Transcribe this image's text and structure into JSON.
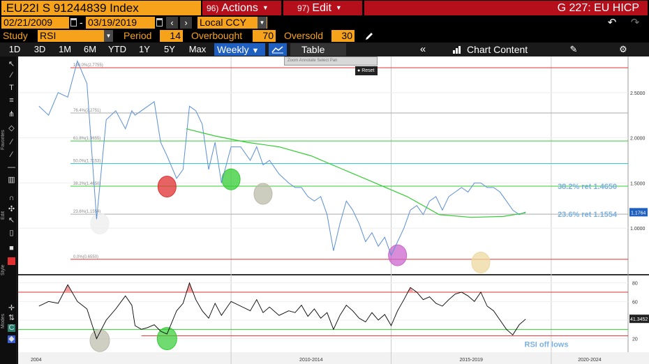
{
  "header": {
    "ticker": ".EU22I S 91244839 Index",
    "actions": {
      "num": "96)",
      "label": "Actions"
    },
    "edit": {
      "num": "97)",
      "label": "Edit"
    },
    "right_title": "G 227: EU HICP"
  },
  "dates": {
    "start": "02/21/2009",
    "end": "03/19/2019",
    "separator": "-",
    "currency": "Local CCY"
  },
  "study": {
    "study_label": "Study",
    "study_value": "RSI",
    "period_label": "Period",
    "period_value": "14",
    "overbought_label": "Overbought",
    "overbought_value": "70",
    "oversold_label": "Oversold",
    "oversold_value": "30"
  },
  "toolbar": {
    "timeframes": [
      "1D",
      "3D",
      "1M",
      "6M",
      "YTD",
      "1Y",
      "5Y",
      "Max"
    ],
    "frequency": "Weekly",
    "table_label": "Table",
    "chart_content_label": "Chart Content"
  },
  "left_toolbar_labels": {
    "favorites": "Favorites",
    "edit": "Edit",
    "style": "Style",
    "modes": "Modes"
  },
  "zoom": {
    "items": [
      "Zoom",
      "Annotate",
      "Select",
      "Pan"
    ],
    "reset_label": "Reset"
  },
  "colors": {
    "accent_orange": "#f7a21b",
    "header_red": "#b50f1c",
    "price": "#5b8fd6",
    "ma": "#33cc33",
    "fib_red": "#e03030",
    "fib_green": "#33cc33",
    "fib_grey": "#aaaaaa",
    "fib_cyan": "#33cccc",
    "rsi": "#000000"
  },
  "chart_data": {
    "type": "line",
    "price_panel": {
      "yaxis_ticks": [
        "2.5000",
        "2.0000",
        "1.5000",
        "1.0000"
      ],
      "ylim": [
        0.5,
        2.9
      ],
      "last_value": "1.1764",
      "series": [
        {
          "name": "",
          "x": [
            2004.0,
            2004.3,
            2004.6,
            2004.9,
            2005.2,
            2005.5,
            2005.8,
            2006.1,
            2006.4,
            2006.7,
            2006.9,
            2007.0,
            2007.2,
            2007.4,
            2007.6,
            2007.8,
            2008.0,
            2008.3,
            2008.5,
            2008.7,
            2008.9,
            2009.1,
            2009.3,
            2009.5,
            2009.7,
            2010.0,
            2010.3,
            2010.6,
            2010.8,
            2011.0,
            2011.2,
            2011.5,
            2011.8,
            2012.0,
            2012.2,
            2012.4,
            2012.6,
            2012.8,
            2013.0,
            2013.2,
            2013.4,
            2013.6,
            2013.8,
            2014.0,
            2014.2,
            2014.4,
            2014.6,
            2014.8,
            2015.0,
            2015.2,
            2015.4,
            2015.6,
            2015.8,
            2016.0,
            2016.2,
            2016.4,
            2016.6,
            2016.8,
            2017.0,
            2017.2,
            2017.4,
            2017.6,
            2017.8,
            2018.0,
            2018.2,
            2018.4,
            2018.6,
            2018.8,
            2019.0,
            2019.2
          ],
          "values": [
            2.35,
            2.25,
            2.5,
            2.45,
            2.85,
            2.6,
            1.1,
            2.2,
            2.3,
            2.1,
            2.3,
            2.25,
            2.3,
            2.35,
            2.4,
            1.95,
            1.8,
            1.55,
            1.65,
            2.35,
            2.3,
            2.15,
            1.65,
            1.95,
            1.5,
            1.9,
            1.9,
            1.75,
            1.9,
            1.7,
            1.75,
            1.6,
            1.5,
            1.45,
            1.45,
            1.35,
            1.3,
            1.35,
            1.15,
            0.75,
            1.05,
            1.3,
            1.2,
            1.05,
            0.85,
            0.95,
            0.8,
            0.9,
            0.7,
            0.85,
            1.0,
            1.2,
            1.25,
            1.15,
            1.3,
            1.35,
            1.2,
            1.35,
            1.4,
            1.45,
            1.4,
            1.5,
            1.5,
            1.45,
            1.45,
            1.4,
            1.3,
            1.2,
            1.15,
            1.18
          ]
        },
        {
          "name": "",
          "x": [
            2008.6,
            2009.5,
            2010.5,
            2011.5,
            2012.5,
            2013.5,
            2014.5,
            2015.5,
            2016.5,
            2017.5,
            2018.5,
            2019.2
          ],
          "values": [
            2.1,
            2.02,
            1.95,
            1.9,
            1.8,
            1.65,
            1.5,
            1.35,
            1.15,
            1.12,
            1.13,
            1.17
          ]
        }
      ],
      "fib_levels": [
        {
          "label": "100.0%(2.7755)",
          "value": 2.7755,
          "color": "#e03030"
        },
        {
          "label": "76.4%(2.2751)",
          "value": 2.2751,
          "color": "#aaaaaa"
        },
        {
          "label": "61.8%(1.9655)",
          "value": 1.9655,
          "color": "#33cc33"
        },
        {
          "label": "50.0%(1.7153)",
          "value": 1.7153,
          "color": "#33cccc"
        },
        {
          "label": "38.2%(1.4650)",
          "value": 1.465,
          "color": "#33cc33"
        },
        {
          "label": "23.6%(1.1554)",
          "value": 1.1554,
          "color": "#aaaaaa"
        },
        {
          "label": "0.0%(0.6550)",
          "value": 0.655,
          "color": "#e03030"
        }
      ],
      "annotations": [
        {
          "text": "38.2% ret 1.4650",
          "x": 2020.2,
          "y": 1.465
        },
        {
          "text": "23.6% ret 1.1554",
          "x": 2020.2,
          "y": 1.155
        }
      ],
      "markers": [
        {
          "x": 2005.9,
          "y": 1.05,
          "color": "#eeeeee"
        },
        {
          "x": 2008.0,
          "y": 1.46,
          "color": "#e03030"
        },
        {
          "x": 2010.0,
          "y": 1.54,
          "color": "#33cc33"
        },
        {
          "x": 2011.0,
          "y": 1.38,
          "color": "#bbbbaa"
        },
        {
          "x": 2015.2,
          "y": 0.7,
          "color": "#cc66cc"
        },
        {
          "x": 2017.8,
          "y": 0.62,
          "color": "#eed8a0"
        }
      ]
    },
    "rsi_panel": {
      "yaxis_ticks": [
        "80",
        "60",
        "40",
        "20"
      ],
      "ylim": [
        10,
        85
      ],
      "last_value": "41.3452",
      "overbought": 70,
      "oversold": 30,
      "lower_line": 23,
      "series": [
        {
          "name": "",
          "x": [
            2004.0,
            2004.3,
            2004.6,
            2004.9,
            2005.2,
            2005.5,
            2005.8,
            2006.1,
            2006.4,
            2006.7,
            2006.9,
            2007.0,
            2007.2,
            2007.4,
            2007.6,
            2007.8,
            2008.0,
            2008.3,
            2008.5,
            2008.7,
            2008.9,
            2009.1,
            2009.3,
            2009.5,
            2009.7,
            2010.0,
            2010.3,
            2010.6,
            2010.8,
            2011.0,
            2011.2,
            2011.5,
            2011.8,
            2012.0,
            2012.2,
            2012.4,
            2012.6,
            2012.8,
            2013.0,
            2013.2,
            2013.4,
            2013.6,
            2013.8,
            2014.0,
            2014.2,
            2014.4,
            2014.6,
            2014.8,
            2015.0,
            2015.2,
            2015.4,
            2015.6,
            2015.8,
            2016.0,
            2016.2,
            2016.4,
            2016.6,
            2016.8,
            2017.0,
            2017.2,
            2017.4,
            2017.6,
            2017.8,
            2018.0,
            2018.2,
            2018.4,
            2018.6,
            2018.8,
            2019.0,
            2019.2
          ],
          "values": [
            55,
            60,
            58,
            78,
            60,
            52,
            20,
            40,
            52,
            66,
            56,
            34,
            30,
            32,
            35,
            28,
            25,
            50,
            58,
            80,
            62,
            50,
            42,
            58,
            45,
            60,
            55,
            50,
            62,
            48,
            54,
            45,
            50,
            48,
            56,
            44,
            52,
            42,
            48,
            30,
            45,
            56,
            50,
            42,
            38,
            48,
            40,
            46,
            34,
            50,
            62,
            75,
            70,
            62,
            65,
            58,
            55,
            62,
            68,
            70,
            66,
            60,
            70,
            55,
            50,
            40,
            30,
            24,
            35,
            41
          ]
        }
      ],
      "annotations": [
        {
          "text": "RSI off lows",
          "x": 2019.6,
          "y": 14
        }
      ],
      "markers": [
        {
          "x": 2005.9,
          "y": 18,
          "color": "#bbbbaa"
        },
        {
          "x": 2008.0,
          "y": 20,
          "color": "#33cc33"
        }
      ]
    },
    "xaxis_labels": [
      {
        "text": "2004",
        "x": 2004.0
      },
      {
        "text": "2010-2014",
        "x": 2010.0
      },
      {
        "text": "2015-2019",
        "x": 2015.0
      },
      {
        "text": "2020-2024",
        "x": 2020.0
      }
    ],
    "xlim": [
      2003.35,
      2022.4
    ],
    "grid": true
  }
}
